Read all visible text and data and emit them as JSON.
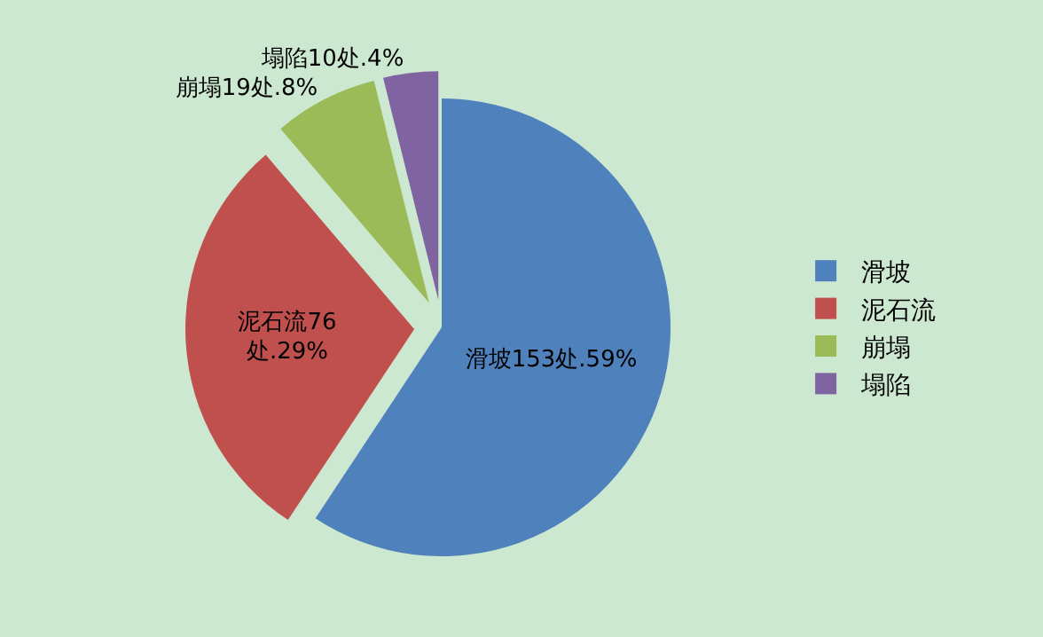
{
  "chart_data": {
    "type": "pie",
    "categories": [
      "滑坡",
      "泥石流",
      "崩塌",
      "塌陷"
    ],
    "values": [
      153,
      76,
      19,
      10
    ],
    "colors": [
      "#4f81bd",
      "#c0504d",
      "#9bbb59",
      "#8064a2"
    ],
    "value_labels": [
      "滑坡153处.59%",
      "泥石流76\n处.29%",
      "崩塌19处.8%",
      "塌陷10处.4%"
    ],
    "legend": "right"
  }
}
